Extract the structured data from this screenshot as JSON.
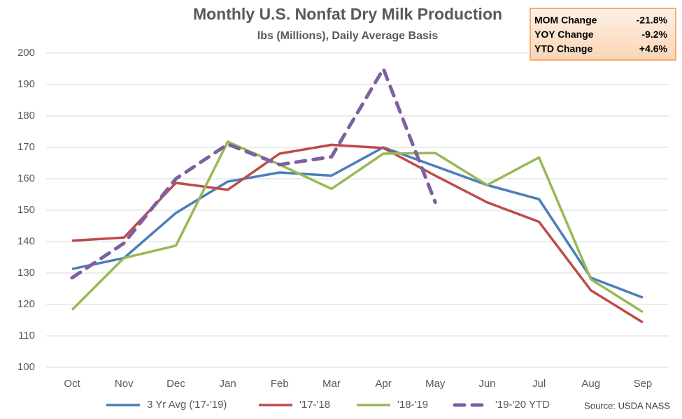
{
  "chart_data": {
    "type": "line",
    "title": "Monthly U.S. Nonfat Dry Milk Production",
    "subtitle": "lbs (Millions), Daily Average Basis",
    "source": "Source: USDA NASS",
    "categories": [
      "Oct",
      "Nov",
      "Dec",
      "Jan",
      "Feb",
      "Mar",
      "Apr",
      "May",
      "Jun",
      "Jul",
      "Aug",
      "Sep"
    ],
    "series": [
      {
        "name": "3 Yr Avg ('17-'19)",
        "color": "#4a7ebb",
        "dashed": false,
        "values": [
          131.3,
          134.8,
          149.1,
          159.1,
          162,
          161,
          170,
          164,
          158,
          153.5,
          128.5,
          122.2
        ]
      },
      {
        "name": "'17-'18",
        "color": "#be4b48",
        "dashed": false,
        "values": [
          140.3,
          141.3,
          158.7,
          156.5,
          168,
          170.8,
          169.8,
          161,
          152.5,
          146.3,
          124.5,
          114.3
        ]
      },
      {
        "name": "'18-'19",
        "color": "#98b954",
        "dashed": false,
        "values": [
          118.3,
          134.8,
          138.7,
          171.8,
          164.5,
          156.8,
          168,
          168.2,
          158,
          166.8,
          128,
          117.6
        ]
      },
      {
        "name": "'19-'20 YTD",
        "color": "#7d60a0",
        "dashed": true,
        "values": [
          128.5,
          139.5,
          160,
          171,
          164.5,
          167,
          195,
          152.5,
          null,
          null,
          null,
          null
        ]
      }
    ],
    "ylim": [
      100,
      200
    ],
    "yticks": [
      100,
      110,
      120,
      130,
      140,
      150,
      160,
      170,
      180,
      190,
      200
    ],
    "grid": true,
    "legend": "bottom",
    "annotation_table": [
      {
        "label": "MOM Change",
        "value": "-21.8%"
      },
      {
        "label": "YOY Change",
        "value": "-9.2%"
      },
      {
        "label": "YTD Change",
        "value": "+4.6%"
      }
    ]
  }
}
